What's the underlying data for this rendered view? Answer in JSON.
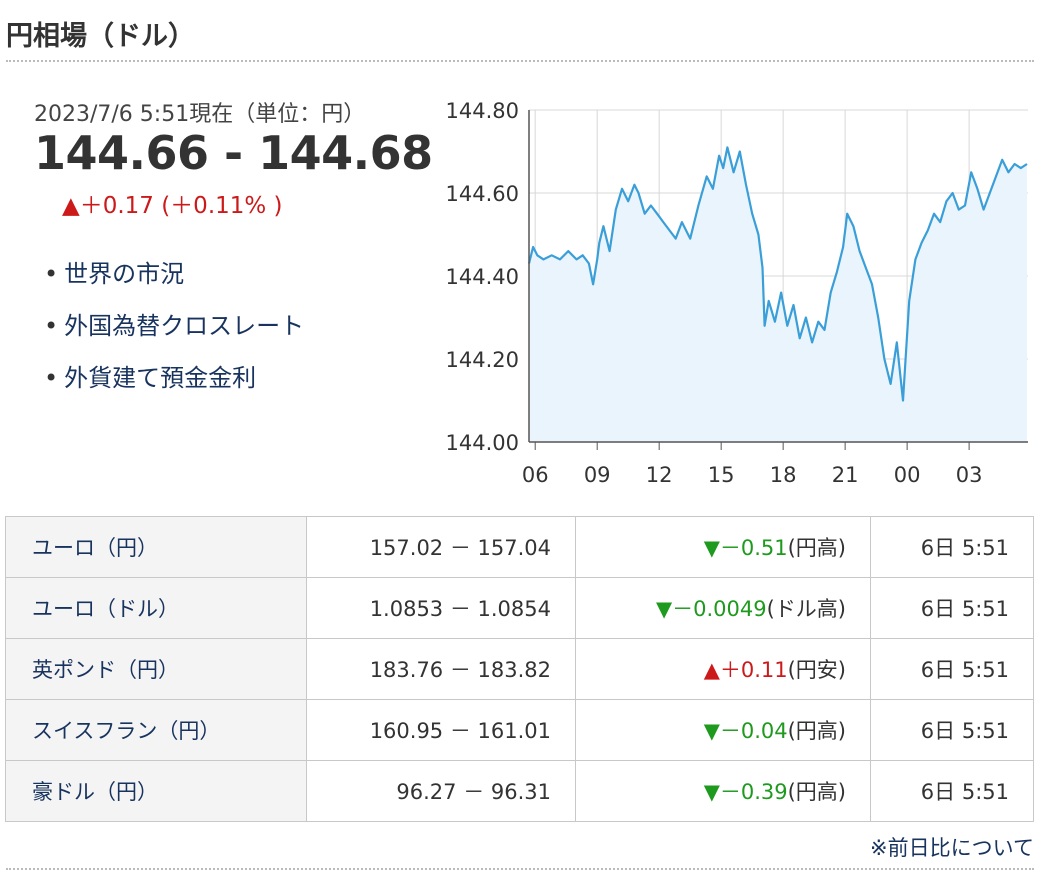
{
  "header": {
    "title": "円相場（ドル）"
  },
  "summary": {
    "timestamp": "2023/7/6 5:51現在（単位：円）",
    "rate": "144.66 - 144.68",
    "change": "▲＋0.17 (＋0.11% )"
  },
  "links": [
    {
      "label": "世界の市況"
    },
    {
      "label": "外国為替クロスレート"
    },
    {
      "label": "外貨建て預金金利"
    }
  ],
  "chart_data": {
    "type": "area",
    "title": "",
    "xlabel": "",
    "ylabel": "",
    "ylim": [
      144.0,
      144.8
    ],
    "yticks": [
      "144.80",
      "144.60",
      "144.40",
      "144.20",
      "144.00"
    ],
    "xticks": [
      "06",
      "09",
      "12",
      "15",
      "18",
      "21",
      "00",
      "03"
    ],
    "xlim": [
      5.7,
      29.85
    ],
    "grid": true,
    "colors": {
      "line": "#3a9fd8",
      "fill": "#eaf4fc",
      "grid": "#d8d8d8"
    },
    "series": [
      {
        "x": [
          5.7,
          5.9,
          6.1,
          6.4,
          6.8,
          7.2,
          7.6,
          8.0,
          8.3,
          8.6,
          8.8,
          9.0,
          9.1,
          9.3,
          9.6,
          9.9,
          10.2,
          10.5,
          10.8,
          11.0,
          11.3,
          11.6,
          11.9,
          12.2,
          12.5,
          12.8,
          13.1,
          13.5,
          13.9,
          14.3,
          14.6,
          14.9,
          15.1,
          15.3,
          15.6,
          15.9,
          16.2,
          16.5,
          16.8,
          17.0,
          17.1,
          17.3,
          17.6,
          17.9,
          18.2,
          18.5,
          18.8,
          19.1,
          19.4,
          19.7,
          20.0,
          20.3,
          20.6,
          20.9,
          21.1,
          21.4,
          21.7,
          22.0,
          22.3,
          22.6,
          22.9,
          23.2,
          23.5,
          23.8,
          24.1,
          24.4,
          24.7,
          25.0,
          25.3,
          25.6,
          25.9,
          26.2,
          26.5,
          26.8,
          27.1,
          27.4,
          27.7,
          28.0,
          28.3,
          28.6,
          28.9,
          29.2,
          29.5,
          29.8
        ],
        "y": [
          144.43,
          144.47,
          144.45,
          144.44,
          144.45,
          144.44,
          144.46,
          144.44,
          144.45,
          144.43,
          144.38,
          144.44,
          144.48,
          144.52,
          144.46,
          144.56,
          144.61,
          144.58,
          144.62,
          144.6,
          144.55,
          144.57,
          144.55,
          144.53,
          144.51,
          144.49,
          144.53,
          144.49,
          144.57,
          144.64,
          144.61,
          144.69,
          144.66,
          144.71,
          144.65,
          144.7,
          144.62,
          144.55,
          144.5,
          144.42,
          144.28,
          144.34,
          144.29,
          144.36,
          144.28,
          144.33,
          144.25,
          144.3,
          144.24,
          144.29,
          144.27,
          144.36,
          144.41,
          144.47,
          144.55,
          144.52,
          144.46,
          144.42,
          144.38,
          144.3,
          144.2,
          144.14,
          144.24,
          144.1,
          144.34,
          144.44,
          144.48,
          144.51,
          144.55,
          144.53,
          144.58,
          144.6,
          144.56,
          144.57,
          144.65,
          144.61,
          144.56,
          144.6,
          144.64,
          144.68,
          144.65,
          144.67,
          144.66,
          144.67
        ]
      }
    ]
  },
  "table": {
    "rows": [
      {
        "name": "ユーロ（円）",
        "value": "157.02 － 157.04",
        "change": "▼－0.51",
        "dir": "down",
        "suffix": "(円高)",
        "time": "6日 5:51"
      },
      {
        "name": "ユーロ（ドル）",
        "value": "1.0853 － 1.0854",
        "change": "▼－0.0049",
        "dir": "down",
        "suffix": "(ドル高)",
        "time": "6日 5:51"
      },
      {
        "name": "英ポンド（円）",
        "value": "183.76 － 183.82",
        "change": "▲＋0.11",
        "dir": "up",
        "suffix": "(円安)",
        "time": "6日 5:51"
      },
      {
        "name": "スイスフラン（円）",
        "value": "160.95 － 161.01",
        "change": "▼－0.04",
        "dir": "down",
        "suffix": "(円高)",
        "time": "6日 5:51"
      },
      {
        "name": "豪ドル（円）",
        "value": "96.27 － 96.31",
        "change": "▼－0.39",
        "dir": "down",
        "suffix": "(円高)",
        "time": "6日 5:51"
      }
    ]
  },
  "footer": {
    "note": "※前日比について"
  }
}
